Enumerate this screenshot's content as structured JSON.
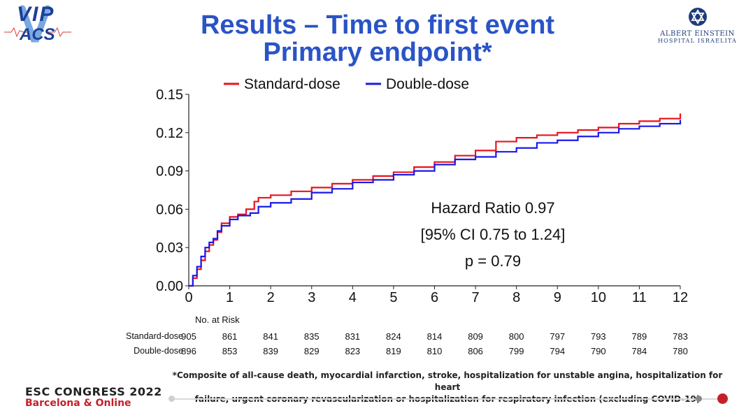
{
  "logo_vip": {
    "line1": "VIP",
    "line2": "ACS"
  },
  "title": {
    "line1": "Results – Time to first event",
    "line2": "Primary endpoint*"
  },
  "logo_ae": {
    "name": "ALBERT EINSTEIN",
    "sub": "HOSPITAL ISRAELITA"
  },
  "chart_data": {
    "type": "line",
    "title": "",
    "xlabel": "",
    "ylabel": "",
    "xlim": [
      0,
      12
    ],
    "ylim": [
      0,
      0.15
    ],
    "x_ticks": [
      "0",
      "1",
      "2",
      "3",
      "4",
      "5",
      "6",
      "7",
      "8",
      "9",
      "10",
      "11",
      "12"
    ],
    "y_ticks": [
      "0.00",
      "0.03",
      "0.06",
      "0.09",
      "0.12",
      "0.15"
    ],
    "legend_position": "top",
    "grid": false,
    "series": [
      {
        "name": "Standard-dose",
        "color": "#e8141e",
        "points": [
          [
            0,
            0
          ],
          [
            0.1,
            0.006
          ],
          [
            0.2,
            0.013
          ],
          [
            0.3,
            0.02
          ],
          [
            0.4,
            0.027
          ],
          [
            0.5,
            0.032
          ],
          [
            0.6,
            0.036
          ],
          [
            0.7,
            0.042
          ],
          [
            0.8,
            0.049
          ],
          [
            1.0,
            0.054
          ],
          [
            1.2,
            0.056
          ],
          [
            1.4,
            0.06
          ],
          [
            1.6,
            0.066
          ],
          [
            1.7,
            0.069
          ],
          [
            2.0,
            0.071
          ],
          [
            2.5,
            0.074
          ],
          [
            3.0,
            0.077
          ],
          [
            3.5,
            0.08
          ],
          [
            4.0,
            0.083
          ],
          [
            4.5,
            0.086
          ],
          [
            5.0,
            0.089
          ],
          [
            5.5,
            0.093
          ],
          [
            6.0,
            0.097
          ],
          [
            6.5,
            0.102
          ],
          [
            7.0,
            0.106
          ],
          [
            7.5,
            0.113
          ],
          [
            8.0,
            0.116
          ],
          [
            8.5,
            0.118
          ],
          [
            9.0,
            0.12
          ],
          [
            9.5,
            0.122
          ],
          [
            10.0,
            0.124
          ],
          [
            10.5,
            0.127
          ],
          [
            11.0,
            0.129
          ],
          [
            11.5,
            0.131
          ],
          [
            12.0,
            0.135
          ]
        ]
      },
      {
        "name": "Double-dose",
        "color": "#1a1ae8",
        "points": [
          [
            0,
            0
          ],
          [
            0.1,
            0.008
          ],
          [
            0.2,
            0.015
          ],
          [
            0.3,
            0.023
          ],
          [
            0.4,
            0.03
          ],
          [
            0.5,
            0.034
          ],
          [
            0.6,
            0.037
          ],
          [
            0.7,
            0.043
          ],
          [
            0.8,
            0.047
          ],
          [
            1.0,
            0.052
          ],
          [
            1.2,
            0.055
          ],
          [
            1.5,
            0.057
          ],
          [
            1.7,
            0.062
          ],
          [
            2.0,
            0.065
          ],
          [
            2.5,
            0.068
          ],
          [
            3.0,
            0.073
          ],
          [
            3.5,
            0.076
          ],
          [
            4.0,
            0.081
          ],
          [
            4.5,
            0.083
          ],
          [
            5.0,
            0.087
          ],
          [
            5.5,
            0.09
          ],
          [
            6.0,
            0.095
          ],
          [
            6.5,
            0.099
          ],
          [
            7.0,
            0.101
          ],
          [
            7.5,
            0.105
          ],
          [
            8.0,
            0.108
          ],
          [
            8.5,
            0.112
          ],
          [
            9.0,
            0.114
          ],
          [
            9.5,
            0.117
          ],
          [
            10.0,
            0.12
          ],
          [
            10.5,
            0.123
          ],
          [
            11.0,
            0.125
          ],
          [
            11.5,
            0.127
          ],
          [
            12.0,
            0.13
          ]
        ]
      }
    ],
    "annotations": [
      "Hazard Ratio 0.97",
      "[95% CI 0.75 to 1.24]",
      "p = 0.79"
    ]
  },
  "risk_table": {
    "title": "No. at Risk",
    "rows": [
      {
        "label": "Standard-dose",
        "values": [
          "905",
          "861",
          "841",
          "835",
          "831",
          "824",
          "814",
          "809",
          "800",
          "797",
          "793",
          "789",
          "783"
        ]
      },
      {
        "label": "Double-dose",
        "values": [
          "896",
          "853",
          "839",
          "829",
          "823",
          "819",
          "810",
          "806",
          "799",
          "794",
          "790",
          "784",
          "780"
        ]
      }
    ]
  },
  "footnote": {
    "line1": "*Composite of all-cause death, myocardial infarction, stroke, hospitalization for unstable angina, hospitalization for heart",
    "line2": "failure, urgent coronary revascularization or hospitalization for respiratory infection (excluding COVID-19)"
  },
  "congress": {
    "name": "ESC CONGRESS 2022",
    "place": "Barcelona & Online"
  }
}
